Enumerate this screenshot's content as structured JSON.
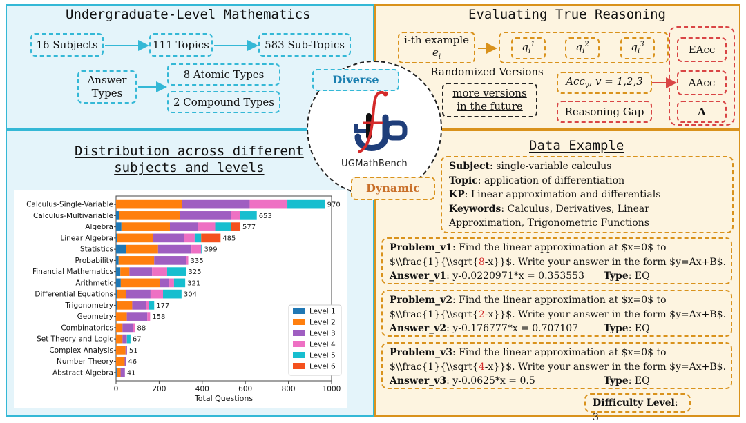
{
  "math": {
    "title": "Undergraduate-Level Mathematics",
    "subjects": "16 Subjects",
    "topics": "111 Topics",
    "subtopics": "583 Sub-Topics",
    "answer_types": [
      "Answer",
      "Types"
    ],
    "atomic": "8 Atomic Types",
    "compound": "2 Compound Types",
    "diverse": "Diverse"
  },
  "eval": {
    "title": "Evaluating True Reasoning",
    "example": "i-th example",
    "example_var": "e",
    "example_sub": "i",
    "q_base": "q",
    "q_sub": "i",
    "q_sups": [
      "1",
      "2",
      "3"
    ],
    "randomized": "Randomized Versions",
    "more_versions": [
      "more versions",
      "in the future"
    ],
    "acc_label": "Acc",
    "acc_sub": "v",
    "acc_range": ", v = 1,2,3",
    "reasoning_gap": "Reasoning Gap",
    "eacc": "EAcc",
    "aacc": "AAcc",
    "delta": "Δ"
  },
  "logo": {
    "name": "UGMathBench",
    "dynamic": "Dynamic"
  },
  "dist": {
    "title_line1": "Distribution across different",
    "title_line2": "subjects and levels"
  },
  "chart_data": {
    "type": "bar",
    "orientation": "horizontal",
    "stacked": true,
    "categories": [
      "Calculus-Single-Variable",
      "Calculus-Multivariable",
      "Algebra",
      "Linear Algebra",
      "Statistics",
      "Probability",
      "Financial Mathematics",
      "Arithmetic",
      "Differential Equations",
      "Trigonometry",
      "Geometry",
      "Combinatorics",
      "Set Theory and Logic",
      "Complex Analysis",
      "Number Theory",
      "Abstract Algebra"
    ],
    "totals": [
      970,
      653,
      577,
      485,
      399,
      335,
      325,
      321,
      304,
      177,
      158,
      88,
      67,
      51,
      46,
      41
    ],
    "series": [
      {
        "name": "Level 1",
        "color": "#1f77b4",
        "values": [
          0,
          15,
          25,
          5,
          45,
          12,
          20,
          22,
          5,
          5,
          0,
          0,
          0,
          0,
          0,
          3
        ]
      },
      {
        "name": "Level 2",
        "color": "#ff7f0e",
        "values": [
          305,
          280,
          225,
          165,
          150,
          165,
          42,
          180,
          40,
          70,
          50,
          30,
          30,
          44,
          40,
          18
        ]
      },
      {
        "name": "Level 3",
        "color": "#9f5ec1",
        "values": [
          315,
          240,
          130,
          145,
          155,
          150,
          105,
          45,
          115,
          65,
          95,
          48,
          15,
          7,
          6,
          20
        ]
      },
      {
        "name": "Level 4",
        "color": "#ee70c3",
        "values": [
          175,
          40,
          80,
          50,
          45,
          8,
          70,
          22,
          58,
          12,
          13,
          10,
          5,
          0,
          0,
          0
        ]
      },
      {
        "name": "Level 5",
        "color": "#17becf",
        "values": [
          175,
          78,
          72,
          30,
          4,
          0,
          88,
          52,
          86,
          25,
          0,
          0,
          17,
          0,
          0,
          0
        ]
      },
      {
        "name": "Level 6",
        "color": "#f4511e",
        "values": [
          0,
          0,
          45,
          90,
          0,
          0,
          0,
          0,
          0,
          0,
          0,
          0,
          0,
          0,
          0,
          0
        ]
      }
    ],
    "xlabel": "Total Questions",
    "xlim": [
      0,
      1000
    ],
    "xticks": [
      0,
      200,
      400,
      600,
      800,
      1000
    ],
    "legend_position": "lower-right",
    "grid": false
  },
  "data_example": {
    "title": "Data Example",
    "subject_label": "Subject",
    "subject_value": ": single-variable calculus",
    "topic_label": "Topic",
    "topic_value": ": application of differentiation",
    "kp_label": "KP",
    "kp_value": ": Linear approximation and differentials",
    "keywords_label": "Keywords",
    "keywords_value_1": ": Calculus, Derivatives, Linear",
    "keywords_value_2": "Approximation, Trigonometric Functions",
    "problems": [
      {
        "label": "Problem_v1",
        "text1": ": Find the linear approximation at $x=0$ to",
        "pre": "$\\\\frac{1}{\\\\sqrt{",
        "num": "8",
        "post": "-x}}$. Write your answer in the form $y=Ax+B$.",
        "answer_label": "Answer_v1",
        "answer": ": y-0.0220971*x = 0.353553",
        "type_label": "Type",
        "type": ": EQ"
      },
      {
        "label": "Problem_v2",
        "text1": ": Find the linear approximation at $x=0$ to",
        "pre": "$\\\\frac{1}{\\\\sqrt{",
        "num": "2",
        "post": "-x}}$. Write your answer in the form $y=Ax+B$.",
        "answer_label": "Answer_v2",
        "answer": ": y-0.176777*x = 0.707107",
        "type_label": "Type",
        "type": ": EQ"
      },
      {
        "label": "Problem_v3",
        "text1": ": Find the linear approximation at $x=0$ to",
        "pre": "$\\\\frac{1}{\\\\sqrt{",
        "num": "4",
        "post": "-x}}$. Write your answer in the form $y=Ax+B$.",
        "answer_label": "Answer_v3",
        "answer": ": y-0.0625*x = 0.5",
        "type_label": "Type",
        "type": ": EQ"
      }
    ],
    "difficulty_label": "Difficulty Level",
    "difficulty_value": ": 3"
  }
}
